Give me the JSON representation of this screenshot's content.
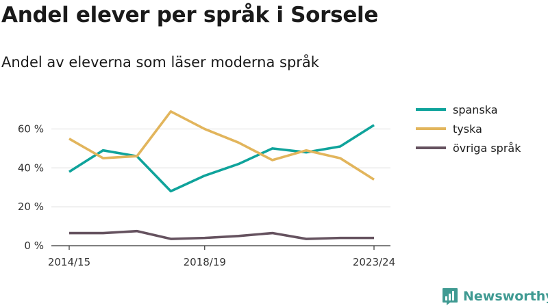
{
  "title": "Andel elever per språk i Sorsele",
  "subtitle": "Andel av eleverna som läser moderna språk",
  "brand": "Newsworthy",
  "colors": {
    "spanska": "#0fa39b",
    "tyska": "#e2b55c",
    "ovriga": "#65525f",
    "grid": "#dddddd",
    "axis": "#333333"
  },
  "chart_data": {
    "type": "line",
    "x": [
      "2014/15",
      "2015/16",
      "2016/17",
      "2017/18",
      "2018/19",
      "2019/20",
      "2020/21",
      "2021/22",
      "2022/23",
      "2023/24"
    ],
    "x_tick_labels": [
      "2014/15",
      "2018/19",
      "2023/24"
    ],
    "series": [
      {
        "name": "spanska",
        "color": "#0fa39b",
        "values": [
          38,
          49,
          46,
          28,
          36,
          42,
          50,
          48,
          51,
          62
        ]
      },
      {
        "name": "tyska",
        "color": "#e2b55c",
        "values": [
          55,
          45,
          46,
          69,
          60,
          53,
          44,
          49,
          45,
          34
        ]
      },
      {
        "name": "övriga språk",
        "color": "#65525f",
        "values": [
          6.5,
          6.5,
          7.5,
          3.5,
          4,
          5,
          6.5,
          3.5,
          4,
          4
        ]
      }
    ],
    "y_ticks": [
      0,
      20,
      40,
      60
    ],
    "y_tick_labels": [
      "0 %",
      "20 %",
      "40 %",
      "60 %"
    ],
    "ylim": [
      0,
      70
    ],
    "grid": true,
    "legend_position": "right"
  }
}
